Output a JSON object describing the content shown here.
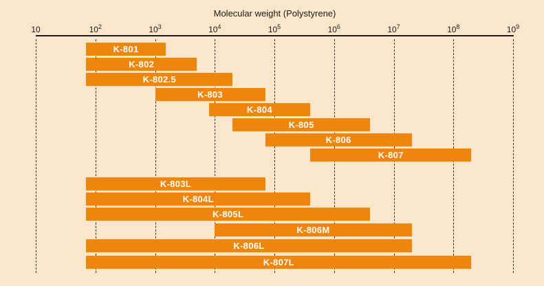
{
  "colors": {
    "background": "#fae6cb",
    "bar": "#ee860d",
    "bar_label": "#ffffff",
    "axis": "#1a1a1a",
    "grid": "#2e2e2e"
  },
  "chart_data": {
    "type": "bar",
    "subtype": "horizontal-range-bars",
    "scale": "log10",
    "title": "Molecular weight (Polystyrene)",
    "xlabel": "Molecular weight (Polystyrene)",
    "axis_range": [
      10,
      1000000000
    ],
    "grid": "dashed-vertical-per-decade",
    "legend": "none",
    "ticks": [
      {
        "base": "10",
        "exp": ""
      },
      {
        "base": "10",
        "exp": "2"
      },
      {
        "base": "10",
        "exp": "3"
      },
      {
        "base": "10",
        "exp": "4"
      },
      {
        "base": "10",
        "exp": "5"
      },
      {
        "base": "10",
        "exp": "6"
      },
      {
        "base": "10",
        "exp": "7"
      },
      {
        "base": "10",
        "exp": "8"
      },
      {
        "base": "10",
        "exp": "9"
      }
    ],
    "series": [
      {
        "name": "K-801",
        "group": 1,
        "range": [
          70,
          1500
        ]
      },
      {
        "name": "K-802",
        "group": 1,
        "range": [
          70,
          5000
        ]
      },
      {
        "name": "K-802.5",
        "group": 1,
        "range": [
          70,
          20000
        ]
      },
      {
        "name": "K-803",
        "group": 1,
        "range": [
          1000,
          70000
        ]
      },
      {
        "name": "K-804",
        "group": 1,
        "range": [
          8000,
          400000
        ]
      },
      {
        "name": "K-805",
        "group": 1,
        "range": [
          20000,
          4000000
        ]
      },
      {
        "name": "K-806",
        "group": 1,
        "range": [
          70000,
          20000000
        ]
      },
      {
        "name": "K-807",
        "group": 1,
        "range": [
          400000,
          200000000
        ]
      },
      {
        "name": "K-803L",
        "group": 2,
        "range": [
          70,
          70000
        ]
      },
      {
        "name": "K-804L",
        "group": 2,
        "range": [
          70,
          400000
        ]
      },
      {
        "name": "K-805L",
        "group": 2,
        "range": [
          70,
          4000000
        ]
      },
      {
        "name": "K-806M",
        "group": 2,
        "range": [
          10000,
          20000000
        ]
      },
      {
        "name": "K-806L",
        "group": 2,
        "range": [
          70,
          20000000
        ]
      },
      {
        "name": "K-807L",
        "group": 2,
        "range": [
          70,
          200000000
        ]
      }
    ]
  }
}
